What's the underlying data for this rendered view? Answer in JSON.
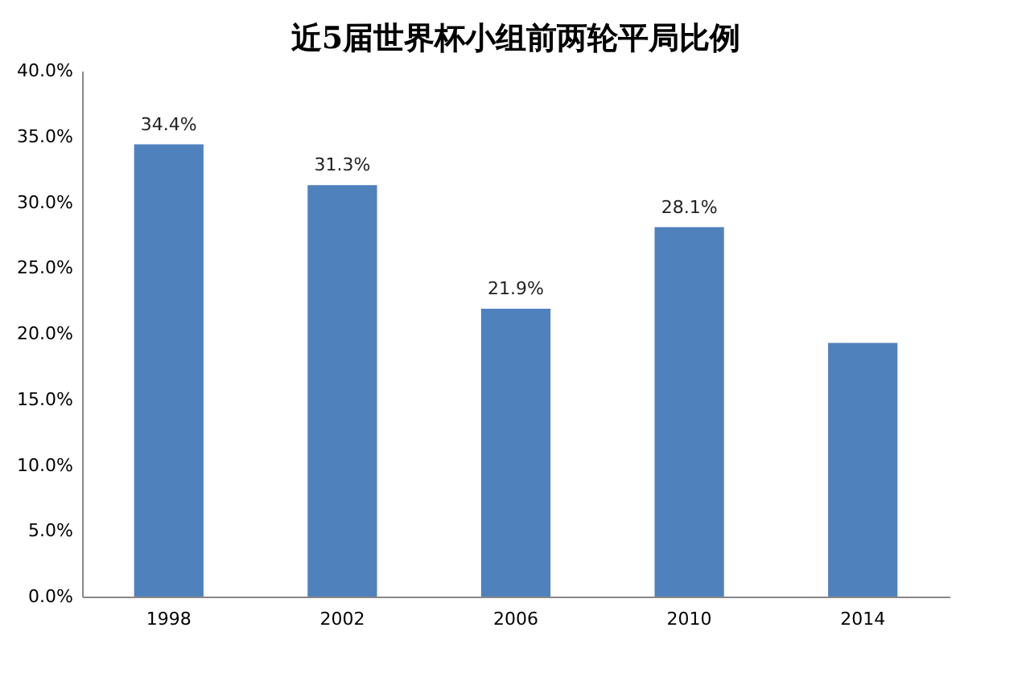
{
  "chart_data": {
    "type": "bar",
    "title": "近5届世界杯小组前两轮平局比例",
    "categories": [
      "1998",
      "2002",
      "2006",
      "2010",
      "2014"
    ],
    "values": [
      34.4,
      31.3,
      21.9,
      28.1,
      19.3
    ],
    "value_labels": [
      "34.4%",
      "31.3%",
      "21.9%",
      "28.1%",
      null
    ],
    "color": "#4f81bd",
    "ylim": [
      0,
      40
    ],
    "yticks": [
      {
        "value": 0,
        "label": "0.0%"
      },
      {
        "value": 5,
        "label": "5.0%"
      },
      {
        "value": 10,
        "label": "10.0%"
      },
      {
        "value": 15,
        "label": "15.0%"
      },
      {
        "value": 20,
        "label": "20.0%"
      },
      {
        "value": 25,
        "label": "25.0%"
      },
      {
        "value": 30,
        "label": "30.0%"
      },
      {
        "value": 35,
        "label": "35.0%"
      },
      {
        "value": 40,
        "label": "40.0%"
      }
    ],
    "grid": false
  }
}
